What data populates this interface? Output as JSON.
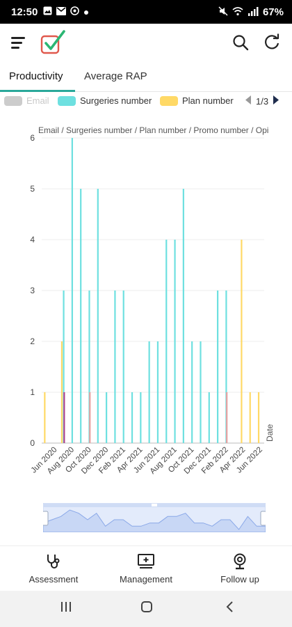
{
  "status_bar": {
    "time": "12:50",
    "battery": "67%",
    "left_icons": [
      "gallery-icon",
      "gmail-icon",
      "whatsapp-icon",
      "dot-icon"
    ],
    "right_icons": [
      "mute-icon",
      "wifi-icon",
      "signal-icon"
    ]
  },
  "app_bar": {
    "icons": [
      "menu-icon",
      "checklist-logo-icon",
      "search-icon",
      "refresh-icon"
    ],
    "logo_colors": {
      "box": "#e0584c",
      "check": "#2bb673"
    }
  },
  "tabs": [
    {
      "label": "Productivity",
      "active": true
    },
    {
      "label": "Average RAP",
      "active": false
    }
  ],
  "legend": {
    "items": [
      {
        "label": "Email",
        "color": "#cccccc",
        "enabled": false
      },
      {
        "label": "Surgeries number",
        "color": "#6ee0e0",
        "enabled": true
      },
      {
        "label": "Plan number",
        "color": "#ffd966",
        "enabled": true
      }
    ],
    "page": "1/3"
  },
  "chart_data": {
    "type": "bar",
    "title": "Email / Surgeries number / Plan number / Promo number / Opi",
    "xlabel": "Date",
    "ylabel": "",
    "ylim": [
      0,
      6
    ],
    "yticks": [
      "0",
      "1",
      "2",
      "3",
      "4",
      "5",
      "6"
    ],
    "grid": true,
    "xtick_labels": [
      "Jun 2020",
      "Aug 2020",
      "Oct 2020",
      "Dec 2020",
      "Feb 2021",
      "Apr 2021",
      "Jun 2021",
      "Aug 2021",
      "Oct 2021",
      "Dec 2021",
      "Feb 2022",
      "Apr 2022",
      "Jun 2022"
    ],
    "categories": [
      "May 2020",
      "Jun 2020",
      "Jul 2020",
      "Aug 2020",
      "Sep 2020",
      "Oct 2020",
      "Nov 2020",
      "Dec 2020",
      "Jan 2021",
      "Feb 2021",
      "Mar 2021",
      "Apr 2021",
      "May 2021",
      "Jun 2021",
      "Jul 2021",
      "Aug 2021",
      "Sep 2021",
      "Oct 2021",
      "Nov 2021",
      "Dec 2021",
      "Jan 2022",
      "Feb 2022",
      "Mar 2022",
      "Apr 2022",
      "May 2022",
      "Jun 2022"
    ],
    "series": [
      {
        "name": "Surgeries number",
        "color": "#6ee0e0",
        "values": [
          0,
          0,
          3,
          6,
          5,
          3,
          5,
          1,
          3,
          3,
          1,
          1,
          2,
          2,
          4,
          4,
          5,
          2,
          2,
          1,
          3,
          3,
          0,
          0,
          0,
          0
        ]
      },
      {
        "name": "Plan number",
        "color": "#ffd966",
        "values": [
          1,
          0,
          2,
          0,
          0,
          0,
          0,
          0,
          0,
          0,
          0,
          0,
          0,
          0,
          0,
          0,
          0,
          0,
          0,
          0,
          0,
          0,
          0,
          4,
          1,
          1
        ]
      },
      {
        "name": "",
        "color": "#e8a0a0",
        "values": [
          0,
          0,
          0,
          0,
          0,
          1,
          0,
          0,
          0,
          0,
          0,
          0,
          0,
          0,
          0,
          0,
          0,
          0,
          0,
          0,
          0,
          1,
          0,
          0,
          0,
          0
        ]
      },
      {
        "name": "",
        "color": "#b0428c",
        "values": [
          0,
          0,
          1,
          0,
          0,
          0,
          0,
          0,
          0,
          0,
          0,
          0,
          0,
          0,
          0,
          0,
          0,
          0,
          0,
          0,
          0,
          0,
          0,
          0,
          0,
          0
        ]
      }
    ]
  },
  "zoom_slider": {
    "preview_values": [
      2,
      3,
      4,
      6,
      5,
      3,
      5,
      1,
      3,
      3,
      1,
      1,
      2,
      2,
      4,
      4,
      5,
      2,
      2,
      1,
      3,
      3,
      0,
      4,
      1,
      1
    ],
    "fill_color": "#c8d7f5",
    "line_color": "#8aa8e8"
  },
  "bottom_nav": [
    {
      "label": "Assessment",
      "icon": "stethoscope-icon"
    },
    {
      "label": "Management",
      "icon": "monitor-plus-icon"
    },
    {
      "label": "Follow up",
      "icon": "webcam-icon"
    }
  ],
  "system_nav": [
    "recents-icon",
    "home-icon",
    "back-icon"
  ]
}
